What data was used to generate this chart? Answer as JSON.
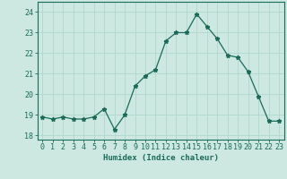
{
  "x": [
    0,
    1,
    2,
    3,
    4,
    5,
    6,
    7,
    8,
    9,
    10,
    11,
    12,
    13,
    14,
    15,
    16,
    17,
    18,
    19,
    20,
    21,
    22,
    23
  ],
  "y": [
    18.9,
    18.8,
    18.9,
    18.8,
    18.8,
    18.9,
    19.3,
    18.3,
    19.0,
    20.4,
    20.9,
    21.2,
    22.6,
    23.0,
    23.0,
    23.9,
    23.3,
    22.7,
    21.9,
    21.8,
    21.1,
    19.9,
    18.7,
    18.7
  ],
  "xlabel": "Humidex (Indice chaleur)",
  "ylim": [
    17.8,
    24.5
  ],
  "xlim": [
    -0.5,
    23.5
  ],
  "yticks": [
    18,
    19,
    20,
    21,
    22,
    23,
    24
  ],
  "xticks": [
    0,
    1,
    2,
    3,
    4,
    5,
    6,
    7,
    8,
    9,
    10,
    11,
    12,
    13,
    14,
    15,
    16,
    17,
    18,
    19,
    20,
    21,
    22,
    23
  ],
  "line_color": "#1a6b5a",
  "marker": "*",
  "marker_size": 3.5,
  "bg_color": "#cce8e0",
  "grid_color": "#b0d8cc",
  "axis_color": "#1a6b5a",
  "label_color": "#1a6b5a",
  "tick_color": "#1a6b5a",
  "label_fontsize": 6.5,
  "tick_fontsize": 6.0
}
